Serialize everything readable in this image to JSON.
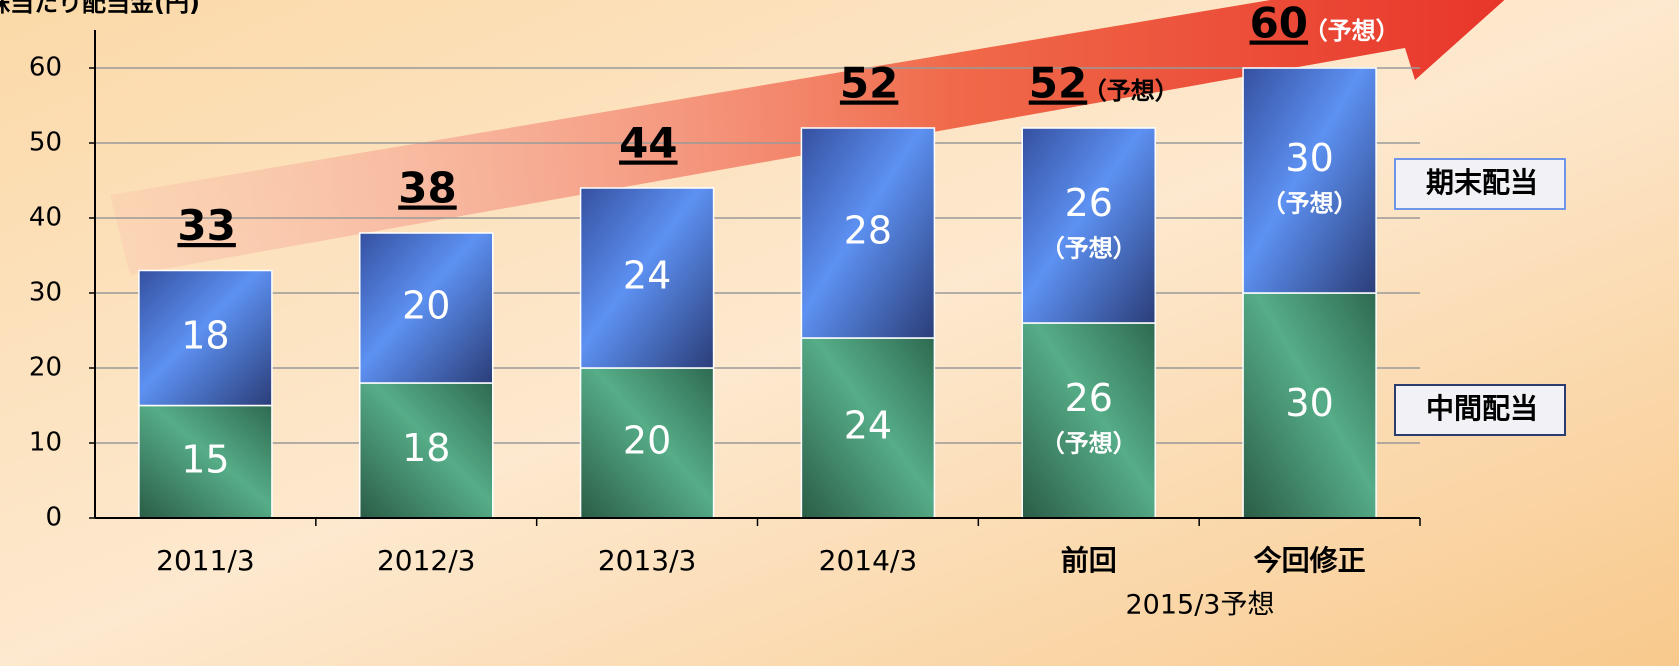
{
  "chart_data": {
    "type": "stacked_bar",
    "y_label": "株当たり配当金(円)",
    "categories": [
      "2011/3",
      "2012/3",
      "2013/3",
      "2014/3",
      "前回",
      "今回修正"
    ],
    "group_label": "2015/3予想",
    "series": [
      {
        "name": "中間配当",
        "color": "#3f8f6c",
        "values": [
          15,
          18,
          20,
          24,
          26,
          30
        ],
        "notes": [
          null,
          null,
          null,
          null,
          "（予想）",
          null
        ]
      },
      {
        "name": "期末配当",
        "color": "#4f7fe0",
        "values": [
          18,
          20,
          24,
          28,
          26,
          30
        ],
        "notes": [
          null,
          null,
          null,
          null,
          "（予想）",
          "（予想）"
        ]
      }
    ],
    "totals": [
      33,
      38,
      44,
      52,
      52,
      60
    ],
    "total_notes": [
      null,
      null,
      null,
      null,
      "（予想）",
      "（予想）"
    ],
    "ylim": [
      0,
      60
    ],
    "yticks": [
      0,
      10,
      20,
      30,
      40,
      50,
      60
    ],
    "grid": true
  }
}
